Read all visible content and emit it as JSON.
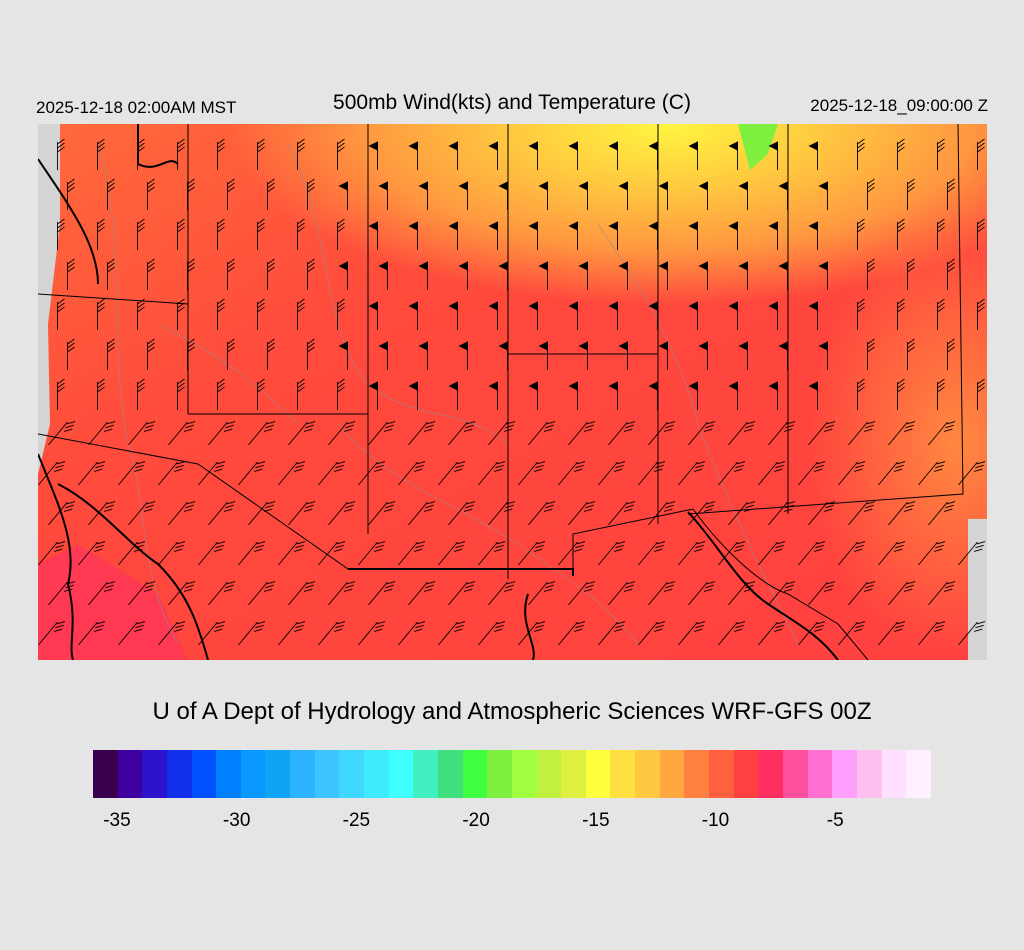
{
  "header": {
    "local_time": "2025-12-18 02:00AM MST",
    "title": "500mb Wind(kts) and Temperature (C)",
    "valid_time": "2025-12-18_09:00:00 Z"
  },
  "credit": "U of A Dept of Hydrology and Atmospheric Sciences WRF-GFS 00Z",
  "map": {
    "variable": "500mb temperature (C) with wind barbs (kts)",
    "region": "western United States",
    "colors": {
      "background": "#d4d4d4",
      "dominant_fill": "#ff4a3c",
      "border_line": "#000000",
      "terrain_contour": "#9a8a8a",
      "wind_barb": "#000000"
    },
    "wind_barbs": "wind-barb-icon"
  },
  "colorbar": {
    "colors": [
      "#3a0050",
      "#3e00a0",
      "#2c14cc",
      "#1030ea",
      "#0050ff",
      "#0080ff",
      "#0898ff",
      "#10a4f4",
      "#2cb4ff",
      "#40c4ff",
      "#40d8ff",
      "#40eaff",
      "#40ffff",
      "#40f0c0",
      "#40e080",
      "#40ff40",
      "#80f040",
      "#a0ff40",
      "#c0f040",
      "#e0f040",
      "#ffff40",
      "#ffe040",
      "#ffc840",
      "#ffa840",
      "#ff8040",
      "#ff6040",
      "#ff4040",
      "#ff3060",
      "#ff50a0",
      "#ff70d0",
      "#ffa0ff",
      "#ffc0f0",
      "#ffe0ff",
      "#fff0ff"
    ],
    "min": -36,
    "max": -1,
    "labels": [
      "-35",
      "-30",
      "-25",
      "-20",
      "-15",
      "-10",
      "-5"
    ]
  }
}
